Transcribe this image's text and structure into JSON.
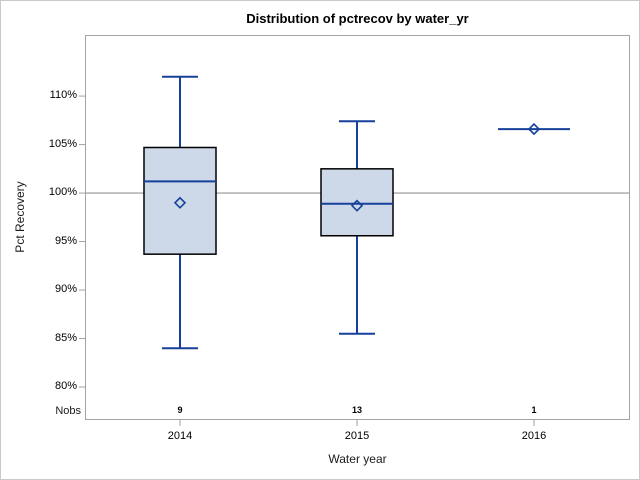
{
  "figure": {
    "title": "Distribution of pctrecov by water_yr"
  },
  "chart_data": {
    "type": "box",
    "title": "Distribution of pctrecov by water_yr",
    "xlabel": "Water year",
    "ylabel": "Pct Recovery",
    "nobs_row_label": "Nobs",
    "ylim": [
      76.6,
      116.3
    ],
    "yticks": [
      {
        "value": 110,
        "label": "110%"
      },
      {
        "value": 105,
        "label": "105%"
      },
      {
        "value": 100,
        "label": "100%"
      },
      {
        "value": 95,
        "label": "95%"
      },
      {
        "value": 90,
        "label": "90%"
      },
      {
        "value": 85,
        "label": "85%"
      },
      {
        "value": 80,
        "label": "80%"
      }
    ],
    "reference_line": 100,
    "grid": false,
    "legend": false,
    "categories": [
      "2014",
      "2015",
      "2016"
    ],
    "series": [
      {
        "category": "2014",
        "nobs": 9,
        "min": 84.0,
        "q1": 93.7,
        "median": 101.2,
        "q3": 104.7,
        "max": 112.0,
        "mean": 99.0
      },
      {
        "category": "2015",
        "nobs": 13,
        "min": 85.5,
        "q1": 95.6,
        "median": 98.9,
        "q3": 102.5,
        "max": 107.4,
        "mean": 98.7
      },
      {
        "category": "2016",
        "nobs": 1,
        "min": 106.6,
        "q1": 106.6,
        "median": 106.6,
        "q3": 106.6,
        "max": 106.6,
        "mean": 106.6
      }
    ],
    "colors": {
      "box_fill": "#cdd8e8",
      "box_border": "#000000",
      "line": "#16409a",
      "reference_line": "#a6a6a6",
      "frame": "#a2a2a8",
      "text": "#000000"
    }
  }
}
